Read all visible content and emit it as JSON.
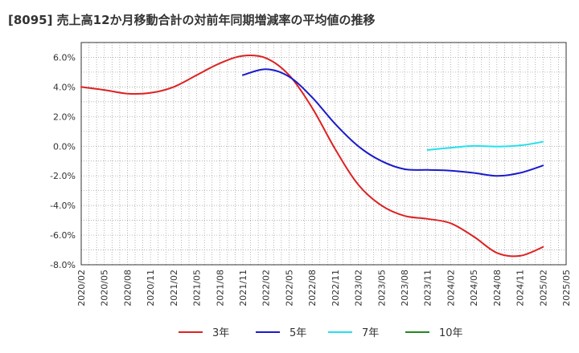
{
  "chart_data": {
    "type": "line",
    "title": "[8095]  売上高12か月移動合計の対前年同期増減率の平均値の推移",
    "x_ticks": [
      "2020/02",
      "2020/05",
      "2020/08",
      "2020/11",
      "2021/02",
      "2021/05",
      "2021/08",
      "2021/11",
      "2022/02",
      "2022/05",
      "2022/08",
      "2022/11",
      "2023/02",
      "2023/05",
      "2023/08",
      "2023/11",
      "2024/02",
      "2024/05",
      "2024/08",
      "2024/11",
      "2025/02",
      "2025/05"
    ],
    "y_ticks": [
      "6.0%",
      "4.0%",
      "2.0%",
      "0.0%",
      "-2.0%",
      "-4.0%",
      "-6.0%",
      "-8.0%"
    ],
    "ylim": [
      -8,
      7
    ],
    "y_unit": "%",
    "grid": true,
    "legend_position": "bottom",
    "series": [
      {
        "name": "3年",
        "color": "#dd2222",
        "points": [
          [
            "2020/02",
            4.0
          ],
          [
            "2020/05",
            3.8
          ],
          [
            "2020/08",
            3.55
          ],
          [
            "2020/11",
            3.6
          ],
          [
            "2021/02",
            4.0
          ],
          [
            "2021/05",
            4.8
          ],
          [
            "2021/08",
            5.6
          ],
          [
            "2021/11",
            6.1
          ],
          [
            "2022/02",
            5.95
          ],
          [
            "2022/05",
            4.8
          ],
          [
            "2022/08",
            2.6
          ],
          [
            "2022/11",
            -0.2
          ],
          [
            "2023/02",
            -2.6
          ],
          [
            "2023/05",
            -4.0
          ],
          [
            "2023/08",
            -4.7
          ],
          [
            "2023/11",
            -4.9
          ],
          [
            "2024/02",
            -5.2
          ],
          [
            "2024/05",
            -6.1
          ],
          [
            "2024/08",
            -7.2
          ],
          [
            "2024/11",
            -7.4
          ],
          [
            "2025/02",
            -6.8
          ]
        ]
      },
      {
        "name": "5年",
        "color": "#1a1acc",
        "points": [
          [
            "2021/11",
            4.8
          ],
          [
            "2022/02",
            5.2
          ],
          [
            "2022/05",
            4.7
          ],
          [
            "2022/08",
            3.3
          ],
          [
            "2022/11",
            1.5
          ],
          [
            "2023/02",
            0.0
          ],
          [
            "2023/05",
            -1.0
          ],
          [
            "2023/08",
            -1.55
          ],
          [
            "2023/11",
            -1.6
          ],
          [
            "2024/02",
            -1.65
          ],
          [
            "2024/05",
            -1.8
          ],
          [
            "2024/08",
            -2.0
          ],
          [
            "2024/11",
            -1.8
          ],
          [
            "2025/02",
            -1.3
          ]
        ]
      },
      {
        "name": "7年",
        "color": "#22e0ee",
        "points": [
          [
            "2023/11",
            -0.25
          ],
          [
            "2024/02",
            -0.1
          ],
          [
            "2024/05",
            0.02
          ],
          [
            "2024/08",
            -0.02
          ],
          [
            "2024/11",
            0.05
          ],
          [
            "2025/02",
            0.3
          ]
        ]
      },
      {
        "name": "10年",
        "color": "#228822",
        "points": []
      }
    ]
  }
}
